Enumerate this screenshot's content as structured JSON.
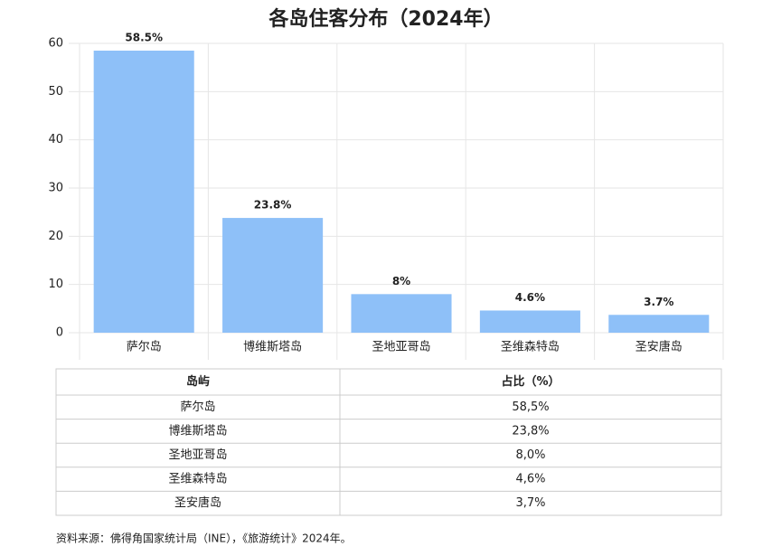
{
  "chart_data": {
    "type": "bar",
    "title": "各岛住客分布（2024年）",
    "categories": [
      "萨尔岛",
      "博维斯塔岛",
      "圣地亚哥岛",
      "圣维森特岛",
      "圣安唐岛"
    ],
    "values": [
      58.5,
      23.8,
      8,
      4.6,
      3.7
    ],
    "value_labels": [
      "58.5%",
      "23.8%",
      "8%",
      "4.6%",
      "3.7%"
    ],
    "color": "#8ec0f8",
    "ylim": [
      0,
      60
    ],
    "yticks": [
      0,
      10,
      20,
      30,
      40,
      50,
      60
    ],
    "grid": true
  },
  "table": {
    "header": [
      "岛屿",
      "占比（%）"
    ],
    "rows": [
      [
        "萨尔岛",
        "58,5%"
      ],
      [
        "博维斯塔岛",
        "23,8%"
      ],
      [
        "圣地亚哥岛",
        "8,0%"
      ],
      [
        "圣维森特岛",
        "4,6%"
      ],
      [
        "圣安唐岛",
        "3,7%"
      ]
    ]
  },
  "source": "资料来源：佛得角国家统计局（INE），《旅游统计》2024年。"
}
